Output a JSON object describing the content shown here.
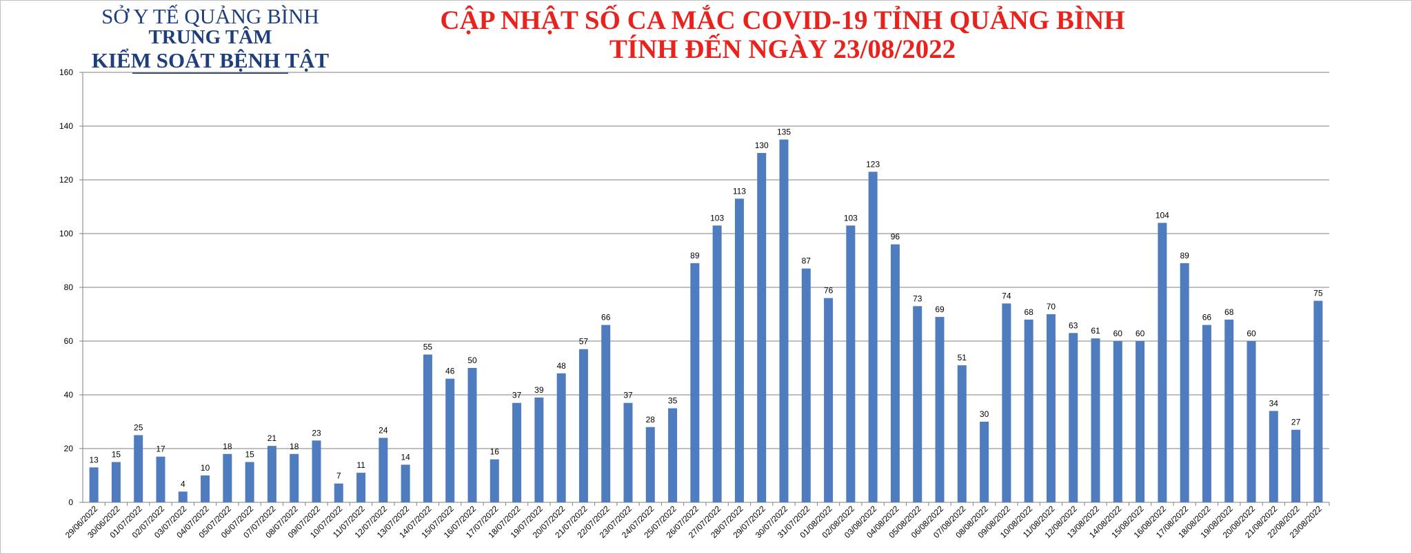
{
  "header": {
    "org_line1": "SỞ Y TẾ QUẢNG BÌNH",
    "org_line2": "TRUNG TÂM",
    "org_line3": "KIỂM SOÁT BỆNH TẬT",
    "title_line1": "CẬP NHẬT SỐ CA MẮC COVID-19 TỈNH QUẢNG BÌNH",
    "title_line2": "TÍNH ĐẾN NGÀY 23/08/2022"
  },
  "colors": {
    "bar": "#4f7cbf",
    "title": "#e8231e",
    "org": "#1f3f7a",
    "grid": "#7f7f7f"
  },
  "chart_data": {
    "type": "bar",
    "title": "CẬP NHẬT SỐ CA MẮC COVID-19 TỈNH QUẢNG BÌNH TÍNH ĐẾN NGÀY 23/08/2022",
    "xlabel": "",
    "ylabel": "",
    "ylim": [
      0,
      160
    ],
    "yticks": [
      0,
      20,
      40,
      60,
      80,
      100,
      120,
      140,
      160
    ],
    "grid": true,
    "legend": "none",
    "categories": [
      "29/06/2022",
      "30/06/2022",
      "01/07/2022",
      "02/07/2022",
      "03/07/2022",
      "04/07/2022",
      "05/07/2022",
      "06/07/2022",
      "07/07/2022",
      "08/07/2022",
      "09/07/2022",
      "10/07/2022",
      "11/07/2022",
      "12/07/2022",
      "13/07/2022",
      "14/07/2022",
      "15/07/2022",
      "16/07/2022",
      "17/07/2022",
      "18/07/2022",
      "19/07/2022",
      "20/07/2022",
      "21/07/2022",
      "22/07/2022",
      "23/07/2022",
      "24/07/2022",
      "25/07/2022",
      "26/07/2022",
      "27/07/2022",
      "28/07/2022",
      "29/07/2022",
      "30/07/2022",
      "31/07/2022",
      "01/08/2022",
      "02/08/2022",
      "03/08/2022",
      "04/08/2022",
      "05/08/2022",
      "06/08/2022",
      "07/08/2022",
      "08/08/2022",
      "09/08/2022",
      "10/08/2022",
      "11/08/2022",
      "12/08/2022",
      "13/08/2022",
      "14/08/2022",
      "15/08/2022",
      "16/08/2022",
      "17/08/2022",
      "18/08/2022",
      "19/08/2022",
      "20/08/2022",
      "21/08/2022",
      "22/08/2022",
      "23/08/2022"
    ],
    "values": [
      13,
      15,
      25,
      17,
      4,
      10,
      18,
      15,
      21,
      18,
      23,
      7,
      11,
      24,
      14,
      55,
      46,
      50,
      16,
      37,
      39,
      48,
      57,
      66,
      37,
      28,
      35,
      89,
      103,
      113,
      130,
      135,
      87,
      76,
      103,
      123,
      96,
      73,
      69,
      51,
      30,
      74,
      68,
      70,
      63,
      61,
      60,
      60,
      104,
      89,
      66,
      68,
      60,
      34,
      27,
      75
    ]
  }
}
